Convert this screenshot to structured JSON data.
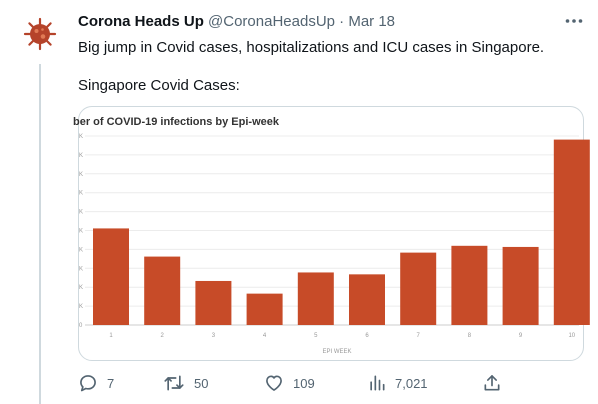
{
  "tweet": {
    "author_name": "Corona Heads Up",
    "handle": "@CoronaHeadsUp",
    "separator": "·",
    "date": "Mar 18",
    "text_line1": "Big jump in Covid cases, hospitalizations and ICU cases in Singapore.",
    "text_line2": "Singapore Covid Cases:",
    "more_icon": "more-horizontal-icon"
  },
  "actions": {
    "reply_count": "7",
    "retweet_count": "50",
    "like_count": "109",
    "views_count": "7,021"
  },
  "colors": {
    "bar": "#c74b28",
    "text_muted": "#536471",
    "avatar": "#b5432a"
  },
  "chart_data": {
    "type": "bar",
    "title": "ber of COVID-19 infections by Epi-week",
    "xlabel": "EPI WEEK",
    "ylabel": "",
    "categories": [
      "1",
      "2",
      "3",
      "4",
      "5",
      "6",
      "7",
      "8",
      "9",
      "10"
    ],
    "values": [
      0.511,
      0.362,
      0.233,
      0.166,
      0.278,
      0.268,
      0.383,
      0.419,
      0.413,
      0.981
    ],
    "ytick_labels": [
      "K",
      "K",
      "K",
      "K",
      "K",
      "K",
      "K",
      "K",
      "K",
      "K",
      "0"
    ],
    "ylim": [
      0,
      1.0
    ],
    "grid": true
  }
}
